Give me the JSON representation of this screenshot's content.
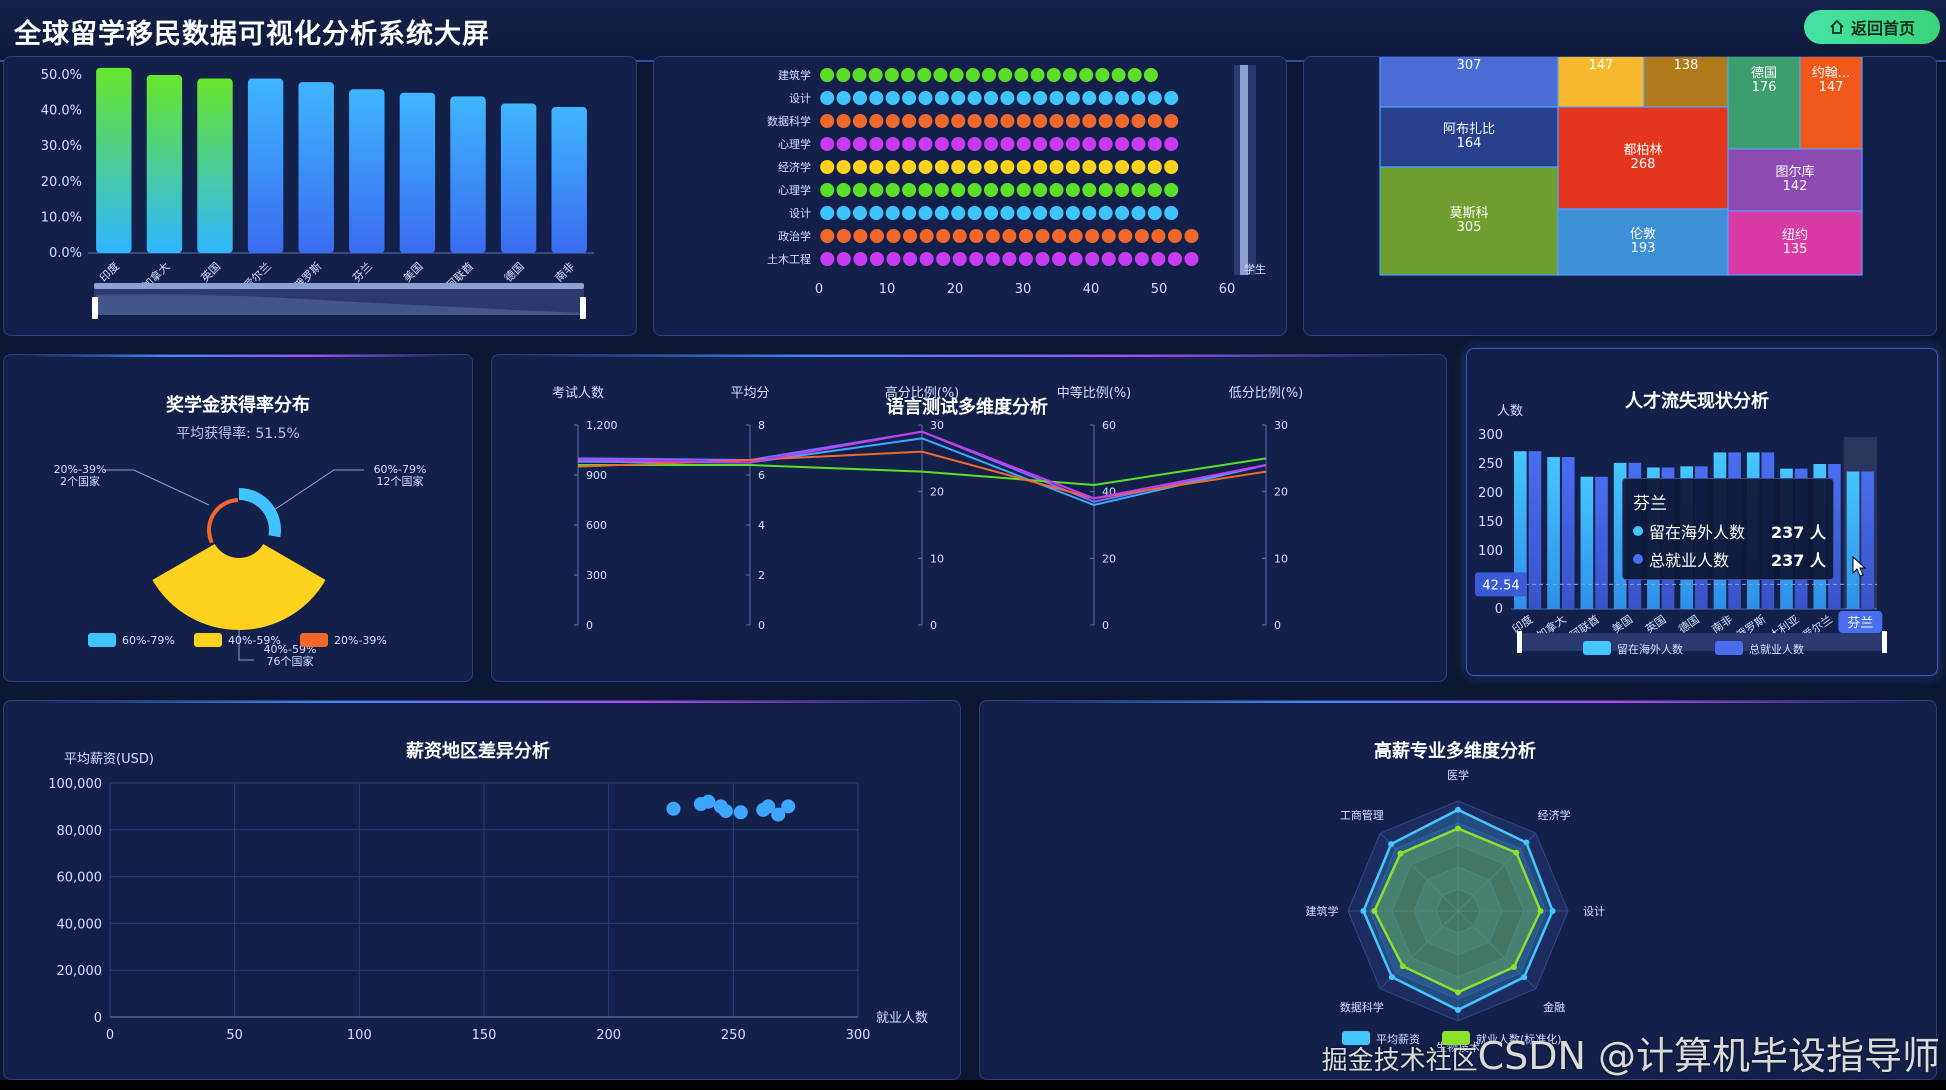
{
  "header": {
    "title": "全球留学移民数据可视化分析系统大屏",
    "home_label": "返回首页",
    "home_icon": "home-icon"
  },
  "colors": {
    "background": "#0d1734",
    "panel": "#13204a",
    "accent_blue": "#3fa7ff",
    "accent_green": "#5be02a",
    "yellow": "#ffd21f",
    "orange": "#f2682c",
    "purple": "#c63cf0"
  },
  "panels": {
    "scholarship": {
      "title": "奖学金获得率分布",
      "subtitle": "平均获得率: 51.5%"
    },
    "language": {
      "title": "语言测试多维度分析"
    },
    "talent": {
      "title": "人才流失现状分析"
    },
    "salary": {
      "title": "薪资地区差异分析"
    },
    "major": {
      "title": "高薪专业多维度分析"
    }
  },
  "chart_data": [
    {
      "id": "country-bar",
      "type": "bar",
      "categories": [
        "印度",
        "加拿大",
        "英国",
        "爱尔兰",
        "俄罗斯",
        "芬兰",
        "美国",
        "阿联酋",
        "德国",
        "南非"
      ],
      "values": [
        52,
        50,
        49,
        49,
        48,
        46,
        45,
        44,
        42,
        41
      ],
      "yticks": [
        "0.0%",
        "10.0%",
        "20.0%",
        "30.0%",
        "40.0%",
        "50.0%"
      ],
      "ylim": [
        0,
        50
      ]
    },
    {
      "id": "major-dots",
      "type": "scatter",
      "categories": [
        "建筑学",
        "设计",
        "数据科学",
        "心理学",
        "经济学",
        "心理学",
        "设计",
        "政治学",
        "土木工程"
      ],
      "values": [
        50,
        53,
        53,
        53,
        53,
        53,
        53,
        56,
        56
      ],
      "dot_colors": [
        "#5be02a",
        "#3fc4ff",
        "#f2682c",
        "#c63cf0",
        "#ffd21f",
        "#5be02a",
        "#3fc4ff",
        "#f2682c",
        "#c63cf0"
      ],
      "xticks": [
        "0",
        "10",
        "20",
        "30",
        "40",
        "50",
        "60"
      ],
      "xlim": [
        0,
        60
      ],
      "slider_label": "学生"
    },
    {
      "id": "city-treemap",
      "type": "treemap",
      "cells": [
        {
          "name": "",
          "value": "307",
          "color": "#4b6bd6"
        },
        {
          "name": "",
          "value": "147",
          "color": "#f6b92e"
        },
        {
          "name": "",
          "value": "138",
          "color": "#b07a18"
        },
        {
          "name": "德国",
          "value": "176",
          "color": "#3d9e6d"
        },
        {
          "name": "约翰...",
          "value": "147",
          "color": "#f0581c"
        },
        {
          "name": "阿布扎比",
          "value": "164",
          "color": "#27418f"
        },
        {
          "name": "都柏林",
          "value": "268",
          "color": "#e4361f"
        },
        {
          "name": "图尔库",
          "value": "142",
          "color": "#8e4ab3"
        },
        {
          "name": "莫斯科",
          "value": "305",
          "color": "#6d9e2e"
        },
        {
          "name": "伦敦",
          "value": "193",
          "color": "#3d8fd6"
        },
        {
          "name": "纽约",
          "value": "135",
          "color": "#d93aa3"
        }
      ]
    },
    {
      "id": "scholarship-pie",
      "type": "pie",
      "slices": [
        {
          "name": "60%-79%",
          "value": 12,
          "label": "60%-79%",
          "sublabel": "12个国家",
          "color": "#3fc4ff"
        },
        {
          "name": "40%-59%",
          "value": 76,
          "label": "40%-59%",
          "sublabel": "76个国家",
          "color": "#ffd21f"
        },
        {
          "name": "20%-39%",
          "value": 2,
          "label": "20%-39%",
          "sublabel": "2个国家",
          "color": "#f2682c"
        }
      ],
      "legend": [
        "60%-79%",
        "40%-59%",
        "20%-39%"
      ]
    },
    {
      "id": "language-parallel",
      "type": "line",
      "axes": [
        {
          "name": "考试人数",
          "ticks": [
            "0",
            "300",
            "600",
            "900",
            "1,200"
          ]
        },
        {
          "name": "平均分",
          "ticks": [
            "0",
            "2",
            "4",
            "6",
            "8"
          ]
        },
        {
          "name": "高分比例(%)",
          "ticks": [
            "0",
            "10",
            "20",
            "30"
          ]
        },
        {
          "name": "中等比例(%)",
          "ticks": [
            "0",
            "20",
            "40",
            "60"
          ]
        },
        {
          "name": "低分比例(%)",
          "ticks": [
            "0",
            "10",
            "20",
            "30"
          ]
        }
      ],
      "series": [
        {
          "color": "#7b6cff",
          "values": [
            1000,
            6.6,
            29,
            37,
            24
          ]
        },
        {
          "color": "#3fa7ff",
          "values": [
            980,
            6.5,
            28,
            36,
            24
          ]
        },
        {
          "color": "#5be02a",
          "values": [
            960,
            6.4,
            23,
            42,
            25
          ]
        },
        {
          "color": "#f2682c",
          "values": [
            950,
            6.6,
            26,
            38,
            23
          ]
        },
        {
          "color": "#c63cf0",
          "values": [
            990,
            6.5,
            29,
            38,
            24
          ]
        }
      ]
    },
    {
      "id": "talent-bar",
      "type": "bar",
      "ylabel": "人数",
      "yticks": [
        "0",
        "50",
        "100",
        "150",
        "200",
        "250",
        "300"
      ],
      "ylim": [
        0,
        300
      ],
      "categories": [
        "印度",
        "加拿大",
        "阿联酋",
        "美国",
        "英国",
        "德国",
        "南非",
        "俄罗斯",
        "澳大利亚",
        "爱尔兰",
        "芬兰"
      ],
      "series": [
        {
          "name": "留在海外人数",
          "color": "#46c6ff",
          "values": [
            272,
            262,
            228,
            252,
            244,
            246,
            270,
            270,
            242,
            250,
            237
          ]
        },
        {
          "name": "总就业人数",
          "color": "#4a6df0",
          "values": [
            272,
            262,
            228,
            252,
            244,
            246,
            270,
            270,
            242,
            250,
            237
          ]
        }
      ],
      "marker_value": "42.54",
      "highlight": "芬兰",
      "tooltip": {
        "title": "芬兰",
        "rows": [
          {
            "label": "留在海外人数",
            "value": "237 人",
            "color": "#46c6ff"
          },
          {
            "label": "总就业人数",
            "value": "237 人",
            "color": "#4a6df0"
          }
        ]
      }
    },
    {
      "id": "salary-scatter",
      "type": "scatter",
      "xlabel": "就业人数",
      "ylabel": "平均薪资(USD)",
      "xlim": [
        0,
        300
      ],
      "ylim": [
        0,
        100000
      ],
      "xticks": [
        "0",
        "50",
        "100",
        "150",
        "200",
        "250",
        "300"
      ],
      "yticks": [
        "0",
        "20,000",
        "40,000",
        "60,000",
        "80,000",
        "100,000"
      ],
      "points": [
        [
          226,
          89000
        ],
        [
          237,
          91000
        ],
        [
          240,
          92000
        ],
        [
          245,
          90000
        ],
        [
          247,
          88000
        ],
        [
          253,
          87500
        ],
        [
          262,
          88500
        ],
        [
          264,
          90000
        ],
        [
          268,
          86500
        ],
        [
          272,
          90000
        ]
      ]
    },
    {
      "id": "major-radar",
      "type": "radar",
      "indicators": [
        "医学",
        "经济学",
        "设计",
        "金融",
        "生物技术",
        "数据科学",
        "建筑学",
        "工商管理"
      ],
      "series": [
        {
          "name": "平均薪资",
          "color": "#46c6ff",
          "values": [
            0.92,
            0.88,
            0.86,
            0.85,
            0.9,
            0.85,
            0.86,
            0.86
          ]
        },
        {
          "name": "就业人数(标准化)",
          "color": "#8fe02a",
          "values": [
            0.75,
            0.75,
            0.75,
            0.72,
            0.74,
            0.71,
            0.76,
            0.74
          ]
        }
      ],
      "legend": [
        "平均薪资",
        "就业人数(标准化)"
      ]
    }
  ],
  "watermark": {
    "prefix": "掘金技术社区",
    "text": "CSDN @计算机毕设指导师"
  }
}
